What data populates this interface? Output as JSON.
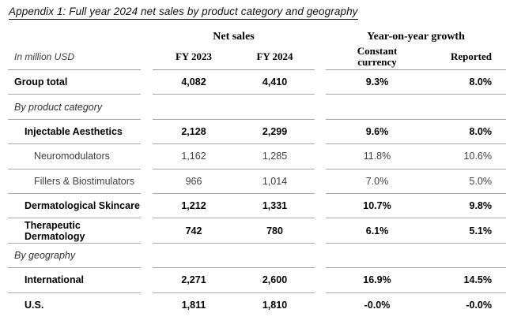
{
  "title": "Appendix 1: Full year 2024 net sales by product category and geography",
  "table": {
    "unit_label": "In million USD",
    "group_headers": {
      "net_sales": "Net sales",
      "yoy_growth": "Year-on-year growth"
    },
    "column_headers": {
      "fy2023": "FY 2023",
      "fy2024": "FY 2024",
      "constant_currency": "Constant currency",
      "reported": "Reported"
    },
    "rows": [
      {
        "label": "Group total",
        "fy2023": "4,082",
        "fy2024": "4,410",
        "constant_currency": "9.3%",
        "reported": "8.0%",
        "style": "total"
      },
      {
        "label": "By product category",
        "fy2023": "",
        "fy2024": "",
        "constant_currency": "",
        "reported": "",
        "style": "section"
      },
      {
        "label": "Injectable Aesthetics",
        "fy2023": "2,128",
        "fy2024": "2,299",
        "constant_currency": "9.6%",
        "reported": "8.0%",
        "style": "category"
      },
      {
        "label": "Neuromodulators",
        "fy2023": "1,162",
        "fy2024": "1,285",
        "constant_currency": "11.8%",
        "reported": "10.6%",
        "style": "subcategory"
      },
      {
        "label": "Fillers & Biostimulators",
        "fy2023": "966",
        "fy2024": "1,014",
        "constant_currency": "7.0%",
        "reported": "5.0%",
        "style": "subcategory"
      },
      {
        "label": "Dermatological Skincare",
        "fy2023": "1,212",
        "fy2024": "1,331",
        "constant_currency": "10.7%",
        "reported": "9.8%",
        "style": "category"
      },
      {
        "label": "Therapeutic Dermatology",
        "fy2023": "742",
        "fy2024": "780",
        "constant_currency": "6.1%",
        "reported": "5.1%",
        "style": "category"
      },
      {
        "label": "By geography",
        "fy2023": "",
        "fy2024": "",
        "constant_currency": "",
        "reported": "",
        "style": "section"
      },
      {
        "label": "International",
        "fy2023": "2,271",
        "fy2024": "2,600",
        "constant_currency": "16.9%",
        "reported": "14.5%",
        "style": "category"
      },
      {
        "label": "U.S.",
        "fy2023": "1,811",
        "fy2024": "1,810",
        "constant_currency": "-0.0%",
        "reported": "-0.0%",
        "style": "category"
      }
    ]
  },
  "colors": {
    "rule": "#a8a8a8",
    "text": "#000000",
    "background": "#ffffff"
  }
}
